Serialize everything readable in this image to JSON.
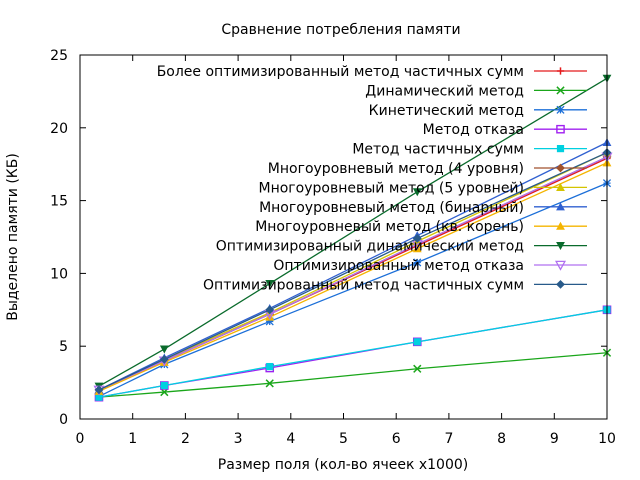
{
  "chart_data": {
    "type": "line",
    "title": "Сравнение потребления памяти",
    "xlabel": "Размер поля (кол-во ячеек x1000)",
    "ylabel": "Выделено памяти (КБ)",
    "xlim": [
      0,
      10
    ],
    "ylim": [
      0,
      25
    ],
    "xticks": [
      "0",
      "1",
      "2",
      "3",
      "4",
      "5",
      "6",
      "7",
      "8",
      "9",
      "10"
    ],
    "yticks": [
      "0",
      "5",
      "10",
      "15",
      "20",
      "25"
    ],
    "grid": false,
    "legend_position": "top-right",
    "x": [
      0.36,
      1.6,
      3.6,
      6.4,
      10
    ],
    "series": [
      {
        "name": "Более оптимизированный метод частичных сумм",
        "color": "#e41a1c",
        "marker": "plus",
        "values": [
          2.0,
          4.0,
          7.2,
          11.9,
          17.9
        ]
      },
      {
        "name": "Динамический метод",
        "color": "#1aa61a",
        "marker": "cross",
        "values": [
          1.5,
          1.85,
          2.45,
          3.45,
          4.55
        ]
      },
      {
        "name": "Кинетический метод",
        "color": "#1c6fd8",
        "marker": "star",
        "values": [
          1.55,
          3.75,
          6.7,
          10.75,
          16.2
        ]
      },
      {
        "name": "Метод отказа",
        "color": "#a020f0",
        "marker": "square-open",
        "values": [
          1.5,
          2.3,
          3.5,
          5.3,
          7.5
        ]
      },
      {
        "name": "Метод частичных сумм",
        "color": "#00d0e0",
        "marker": "square",
        "values": [
          1.5,
          2.3,
          3.6,
          5.3,
          7.5
        ]
      },
      {
        "name": "Многоуровневый метод (4 уровня)",
        "color": "#a0522d",
        "marker": "diamond",
        "values": [
          2.0,
          4.0,
          7.2,
          12.0,
          18.0
        ]
      },
      {
        "name": "Многоуровневый метод (5 уровней)",
        "color": "#d4c400",
        "marker": "triangle",
        "values": [
          2.0,
          4.1,
          7.3,
          12.2,
          18.3
        ]
      },
      {
        "name": "Многоуровневый метод (бинарный)",
        "color": "#3060d0",
        "marker": "triangle",
        "values": [
          2.0,
          4.2,
          7.6,
          12.6,
          19.0
        ]
      },
      {
        "name": "Многоуровневый метод (кв. корень)",
        "color": "#f4b400",
        "marker": "triangle",
        "values": [
          1.9,
          3.9,
          7.0,
          11.7,
          17.6
        ]
      },
      {
        "name": "Оптимизированный динамический метод",
        "color": "#0a6b2c",
        "marker": "triangle-down",
        "values": [
          2.25,
          4.8,
          9.3,
          15.6,
          23.4
        ]
      },
      {
        "name": "Оптимизированный метод отказа",
        "color": "#b070f0",
        "marker": "triangle-down-open",
        "values": [
          2.0,
          4.0,
          7.2,
          12.0,
          18.0
        ]
      },
      {
        "name": "Оптимизированный метод частичных сумм",
        "color": "#285a8a",
        "marker": "diamond",
        "values": [
          2.0,
          4.1,
          7.5,
          12.4,
          18.3
        ]
      }
    ]
  }
}
